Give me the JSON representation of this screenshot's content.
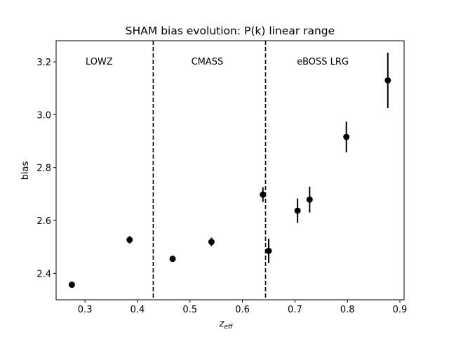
{
  "chart_data": {
    "type": "scatter",
    "title": "SHAM bias evolution: P(k) linear range",
    "xlabel_main": "z",
    "xlabel_sub": "eff",
    "ylabel": "bias",
    "xlim": [
      0.245,
      0.908
    ],
    "ylim": [
      2.3,
      3.28
    ],
    "xticks": [
      0.3,
      0.4,
      0.5,
      0.6,
      0.7,
      0.8,
      0.9
    ],
    "yticks": [
      2.4,
      2.6,
      2.8,
      3.0,
      3.2
    ],
    "grid": false,
    "points": [
      {
        "x": 0.275,
        "y": 2.357,
        "err": 0.008
      },
      {
        "x": 0.385,
        "y": 2.527,
        "err": 0.014
      },
      {
        "x": 0.467,
        "y": 2.455,
        "err": 0.011
      },
      {
        "x": 0.541,
        "y": 2.519,
        "err": 0.016
      },
      {
        "x": 0.639,
        "y": 2.698,
        "err": 0.028
      },
      {
        "x": 0.65,
        "y": 2.485,
        "err": 0.046
      },
      {
        "x": 0.705,
        "y": 2.637,
        "err": 0.046
      },
      {
        "x": 0.728,
        "y": 2.679,
        "err": 0.049
      },
      {
        "x": 0.798,
        "y": 2.916,
        "err": 0.058
      },
      {
        "x": 0.877,
        "y": 3.13,
        "err": 0.105
      }
    ],
    "dividers": [
      0.43,
      0.644
    ],
    "regions": [
      {
        "label": "LOWZ",
        "x": 0.327
      },
      {
        "label": "CMASS",
        "x": 0.533
      },
      {
        "label": "eBOSS LRG",
        "x": 0.753
      }
    ],
    "region_label_y": 3.2,
    "marker_color": "#000000"
  }
}
